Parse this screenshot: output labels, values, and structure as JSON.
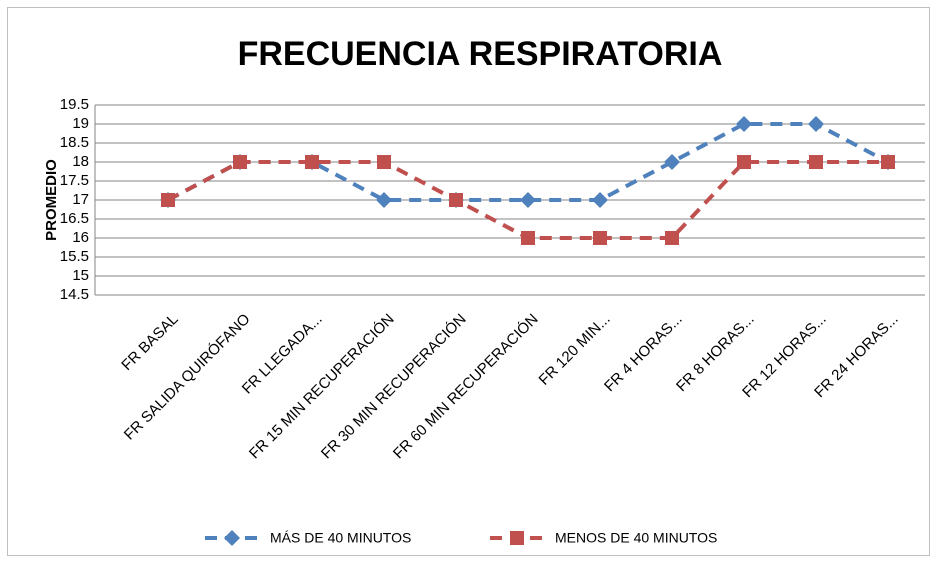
{
  "chart_data": {
    "type": "line",
    "title": "FRECUENCIA RESPIRATORIA",
    "y_label": "PROMEDIO",
    "categories": [
      "FR BASAL",
      "FR SALIDA QUIRÓFANO",
      "FR LLEGADA...",
      "FR 15 MIN RECUPERACIÓN",
      "FR 30 MIN RECUPERACIÓN",
      "FR 60 MIN RECUPERACIÓN",
      "FR 120 MIN...",
      "FR 4 HORAS...",
      "FR 8 HORAS...",
      "FR 12 HORAS...",
      "FR 24 HORAS..."
    ],
    "series": [
      {
        "name": "MÁS DE 40 MINUTOS",
        "color": "#4f81bd",
        "marker": "diamond",
        "values": [
          17,
          18,
          18,
          17,
          17,
          17,
          17,
          18,
          19,
          19,
          18
        ]
      },
      {
        "name": "MENOS DE 40 MINUTOS",
        "color": "#c0504d",
        "marker": "square",
        "values": [
          17,
          18,
          18,
          18,
          17,
          16,
          16,
          16,
          18,
          18,
          18
        ]
      }
    ],
    "ylim": [
      14.5,
      19.5
    ],
    "yticks": [
      14.5,
      15,
      15.5,
      16,
      16.5,
      17,
      17.5,
      18,
      18.5,
      19,
      19.5
    ],
    "grid": true,
    "legend": "bottom"
  }
}
